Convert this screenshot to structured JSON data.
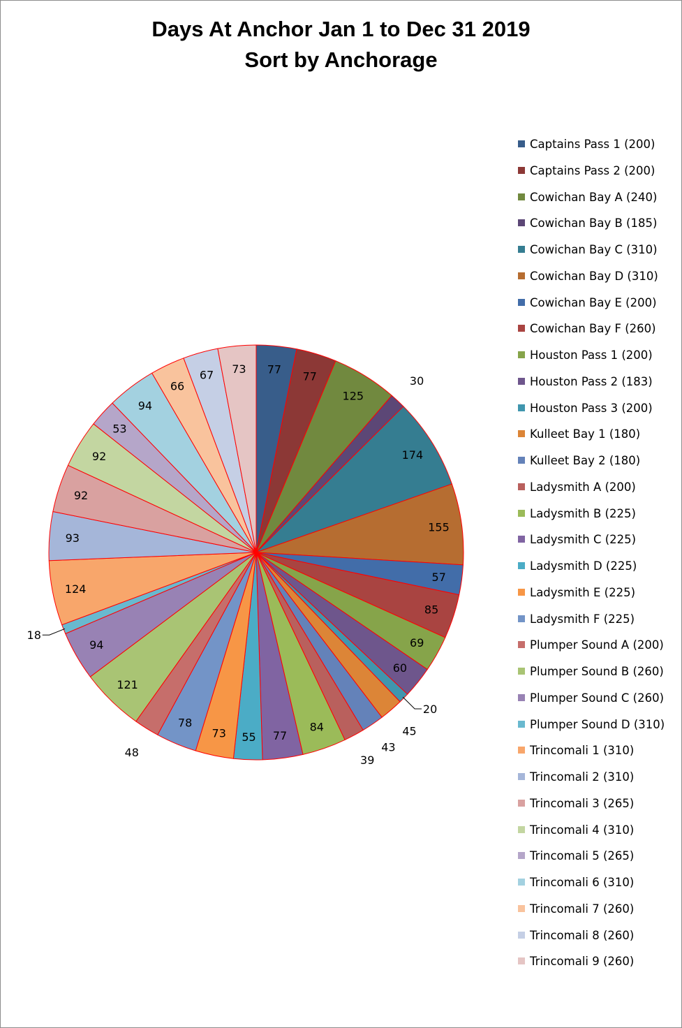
{
  "chart_data": {
    "type": "pie",
    "title": "Days At Anchor Jan 1 to Dec 31 2019",
    "subtitle": "Sort by Anchorage",
    "legend_position": "right",
    "slice_border_color": "#ff0000",
    "categories": [
      "Captains Pass 1 (200)",
      "Captains Pass 2 (200)",
      "Cowichan Bay A (240)",
      "Cowichan Bay B (185)",
      "Cowichan Bay C (310)",
      "Cowichan Bay D (310)",
      "Cowichan Bay E (200)",
      "Cowichan Bay F (260)",
      "Houston Pass 1 (200)",
      "Houston Pass 2 (183)",
      "Houston Pass 3 (200)",
      "Kulleet Bay 1 (180)",
      "Kulleet Bay 2 (180)",
      "Ladysmith A (200)",
      "Ladysmith B (225)",
      "Ladysmith C (225)",
      "Ladysmith D (225)",
      "Ladysmith E (225)",
      "Ladysmith F (225)",
      "Plumper Sound A (200)",
      "Plumper Sound B (260)",
      "Plumper Sound C (260)",
      "Plumper Sound D (310)",
      "Trincomali 1 (310)",
      "Trincomali 2 (310)",
      "Trincomali 3 (265)",
      "Trincomali 4 (310)",
      "Trincomali 5 (265)",
      "Trincomali 6 (310)",
      "Trincomali 7 (260)",
      "Trincomali 8 (260)",
      "Trincomali 9 (260)"
    ],
    "values": [
      77,
      77,
      125,
      30,
      174,
      155,
      57,
      85,
      69,
      60,
      20,
      45,
      43,
      39,
      84,
      77,
      55,
      73,
      78,
      48,
      121,
      94,
      18,
      124,
      93,
      92,
      92,
      53,
      94,
      66,
      67,
      73
    ],
    "value_labels": [
      "77",
      "77",
      "125",
      "30",
      "174",
      "155",
      "57",
      "85",
      "69",
      "60",
      "20",
      "45",
      "43",
      "39",
      "84",
      "77",
      "55",
      "73",
      "78",
      "48",
      "121",
      "94",
      "18",
      "124",
      "93",
      "92",
      "92",
      "53",
      "94",
      "66",
      "67",
      "73"
    ],
    "colors": [
      "#385d8a",
      "#8c3836",
      "#71893f",
      "#5c4776",
      "#357d91",
      "#b66d31",
      "#426da9",
      "#a94441",
      "#86a44a",
      "#6e568c",
      "#4096ae",
      "#dc8537",
      "#6482b9",
      "#b9605d",
      "#9bbb59",
      "#8064a2",
      "#4bacc6",
      "#f79646",
      "#7394c7",
      "#c66e6b",
      "#a9c474",
      "#9882b4",
      "#69b9cf",
      "#f8a66b",
      "#a5b6d9",
      "#d9a1a0",
      "#c3d6a1",
      "#b5a6c9",
      "#a3d1e0",
      "#f9c39d",
      "#c5cfe5",
      "#e5c5c4"
    ]
  }
}
